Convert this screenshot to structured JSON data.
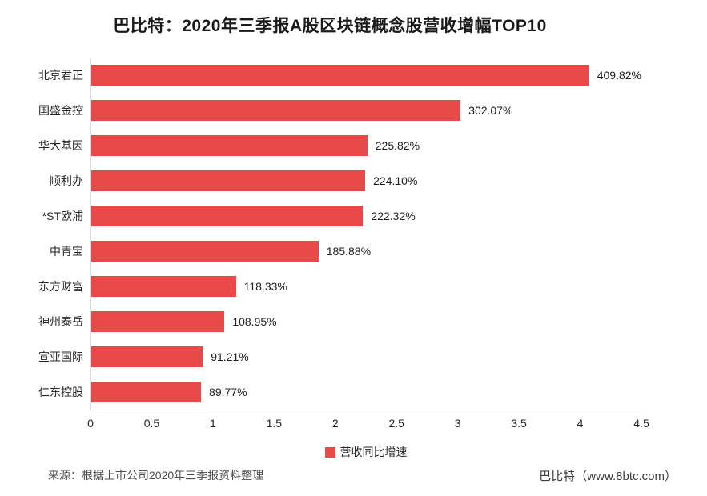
{
  "title": "巴比特：2020年三季报A股区块链概念股营收增幅TOP10",
  "chart_data": {
    "type": "bar",
    "orientation": "horizontal",
    "title": "巴比特：2020年三季报A股区块链概念股营收增幅TOP10",
    "categories": [
      "北京君正",
      "国盛金控",
      "华大基因",
      "顺利办",
      "*ST欧浦",
      "中青宝",
      "东方财富",
      "神州泰岳",
      "宣亚国际",
      "仁东控股"
    ],
    "values": [
      4.0982,
      3.0207,
      2.2582,
      2.241,
      2.2232,
      1.8588,
      1.1833,
      1.0895,
      0.9121,
      0.8977
    ],
    "value_labels": [
      "409.82%",
      "302.07%",
      "225.82%",
      "224.10%",
      "222.32%",
      "185.88%",
      "118.33%",
      "108.95%",
      "91.21%",
      "89.77%"
    ],
    "x_ticks": [
      "0",
      "0.5",
      "1",
      "1.5",
      "2",
      "2.5",
      "3",
      "3.5",
      "4",
      "4.5"
    ],
    "xlim": [
      0,
      4.5
    ],
    "grid": false,
    "legend_position": "bottom",
    "legend": [
      {
        "label": "营收同比增速",
        "color": "#e84a4a"
      }
    ],
    "bar_color": "#e84a4a",
    "axis_color": "#d9d9d9"
  },
  "footer": {
    "source": "来源：根据上市公司2020年三季报资料整理",
    "brand": "巴比特（www.8btc.com）"
  }
}
